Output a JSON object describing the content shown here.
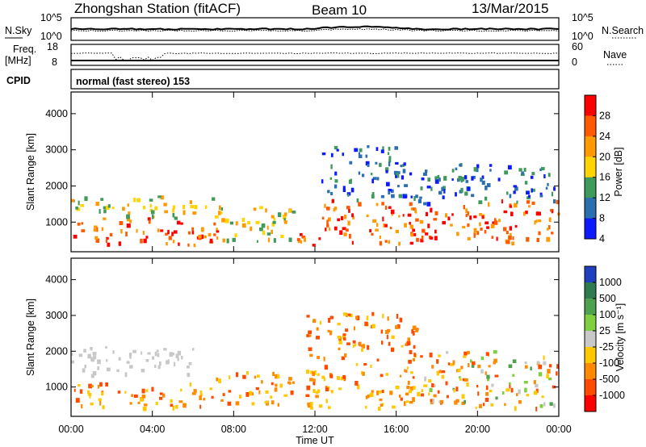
{
  "header": {
    "title": "Zhongshan Station (fitACF)",
    "beam": "Beam 10",
    "date": "13/Mar/2015"
  },
  "top_panels": {
    "nsky_label": "N.Sky",
    "nsearch_label": "N.Search",
    "left_ticks_nsky": [
      "10^5",
      "10^0"
    ],
    "right_ticks_nsearch": [
      "10^5",
      "10^0"
    ],
    "freq_label": [
      "Freq.",
      "[MHz]"
    ],
    "freq_ticks": [
      "18",
      "8"
    ],
    "nave_label": "Nave",
    "nave_ticks": [
      "60",
      "0"
    ],
    "cpid_label": "CPID",
    "cpid_text": "normal (fast stereo) 153"
  },
  "power_colorbar": {
    "label": "Power [dB]",
    "ticks": [
      "28",
      "24",
      "20",
      "16",
      "12",
      "8",
      "4"
    ],
    "colors": [
      "#ff0000",
      "#ff5a00",
      "#ff9a00",
      "#ffd400",
      "#3f9a5c",
      "#2c6fb0",
      "#0c1aff"
    ]
  },
  "velocity_colorbar": {
    "label": "Velocity [m s⁻¹]",
    "ticks": [
      "1000",
      "500",
      "100",
      "25",
      "-25",
      "-100",
      "-500",
      "-1000"
    ],
    "colors": [
      "#1f3fbf",
      "#2f7a4f",
      "#4fa04f",
      "#7fcf3f",
      "#c8c8c8",
      "#ffc800",
      "#ff8a00",
      "#ff4a00",
      "#ff0000"
    ]
  },
  "chart_data": [
    {
      "type": "heatmap",
      "name": "power",
      "ylabel": "Slant Range [km]",
      "xlabel": "Time UT",
      "x_ticks": [
        "00:00",
        "04:00",
        "08:00",
        "12:00",
        "16:00",
        "20:00",
        "00:00"
      ],
      "y_ticks": [
        1000,
        2000,
        3000,
        4000
      ],
      "ylim": [
        180,
        4600
      ],
      "xlim_hours": [
        0,
        24
      ],
      "colorbar_label": "Power [dB]",
      "colorbar_ticks": [
        4,
        8,
        12,
        16,
        20,
        24,
        28
      ],
      "regions": [
        {
          "t0": 0.0,
          "t1": 7.2,
          "r0": 350,
          "r1": 1100,
          "level": "high"
        },
        {
          "t0": 0.0,
          "t1": 7.5,
          "r0": 1100,
          "r1": 1700,
          "level": "mid"
        },
        {
          "t0": 7.0,
          "t1": 11.0,
          "r0": 450,
          "r1": 1400,
          "level": "mid"
        },
        {
          "t0": 11.0,
          "t1": 12.2,
          "r0": 300,
          "r1": 900,
          "level": "high"
        },
        {
          "t0": 12.3,
          "t1": 24.0,
          "r0": 400,
          "r1": 1600,
          "level": "high"
        },
        {
          "t0": 12.3,
          "t1": 17.0,
          "r0": 1600,
          "r1": 3100,
          "level": "low"
        },
        {
          "t0": 17.0,
          "t1": 24.0,
          "r0": 1500,
          "r1": 2600,
          "level": "low"
        }
      ]
    },
    {
      "type": "heatmap",
      "name": "velocity",
      "ylabel": "Slant Range [km]",
      "xlabel": "Time UT",
      "x_ticks": [
        "00:00",
        "04:00",
        "08:00",
        "12:00",
        "16:00",
        "20:00",
        "00:00"
      ],
      "y_ticks": [
        1000,
        2000,
        3000,
        4000
      ],
      "ylim": [
        180,
        4600
      ],
      "xlim_hours": [
        0,
        24
      ],
      "colorbar_label": "Velocity [m s⁻¹]",
      "colorbar_ticks": [
        1000,
        500,
        100,
        25,
        -25,
        -100,
        -500,
        -1000
      ],
      "regions": [
        {
          "t0": 0.0,
          "t1": 7.0,
          "r0": 400,
          "r1": 1100,
          "level": "neg"
        },
        {
          "t0": 0.0,
          "t1": 6.0,
          "r0": 1300,
          "r1": 2100,
          "level": "zero"
        },
        {
          "t0": 7.0,
          "t1": 11.0,
          "r0": 500,
          "r1": 1400,
          "level": "neg"
        },
        {
          "t0": 11.5,
          "t1": 17.0,
          "r0": 400,
          "r1": 3100,
          "level": "neg"
        },
        {
          "t0": 17.0,
          "t1": 24.0,
          "r0": 400,
          "r1": 2000,
          "level": "mixed"
        }
      ]
    }
  ]
}
